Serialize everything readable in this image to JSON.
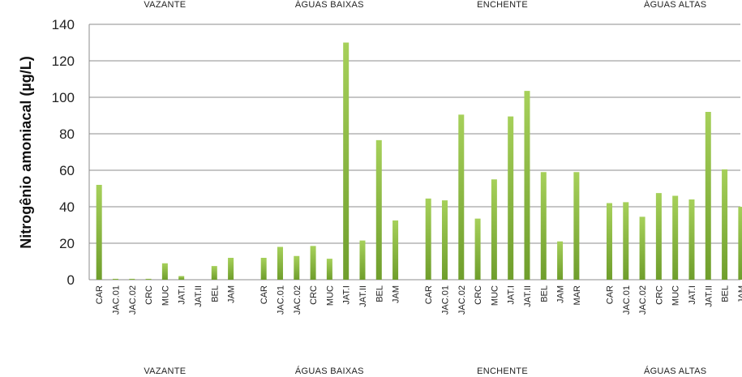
{
  "chart_data": {
    "type": "bar",
    "title": "",
    "ylabel": "Nitrogênio amoniacal (µg/L)",
    "xlabel": "",
    "ylim": [
      0,
      140
    ],
    "yticks": [
      0,
      20,
      40,
      60,
      80,
      100,
      120,
      140
    ],
    "grid": true,
    "legend": "none",
    "bar_color": "#8cbf3f",
    "groups": [
      {
        "name": "VAZANTE",
        "categories": [
          "CAR",
          "JAC.01",
          "JAC.02",
          "CRC",
          "MUC",
          "JAT.I",
          "JAT.II",
          "BEL",
          "JAM"
        ],
        "values": [
          52,
          0.5,
          0.5,
          0.5,
          9,
          2,
          0,
          7.5,
          12
        ]
      },
      {
        "name": "ÁGUAS BAIXAS",
        "categories": [
          "CAR",
          "JAC.01",
          "JAC.02",
          "CRC",
          "MUC",
          "JAT.I",
          "JAT.II",
          "BEL",
          "JAM"
        ],
        "values": [
          12,
          18,
          13,
          18.5,
          11.5,
          130,
          21.5,
          76.5,
          32.5
        ]
      },
      {
        "name": "ENCHENTE",
        "categories": [
          "CAR",
          "JAC.01",
          "JAC.02",
          "CRC",
          "MUC",
          "JAT.I",
          "JAT.II",
          "BEL",
          "JAM",
          "MAR"
        ],
        "values": [
          44.5,
          43.5,
          90.5,
          33.5,
          55,
          89.5,
          103.5,
          59,
          21,
          59
        ]
      },
      {
        "name": "ÁGUAS ALTAS",
        "categories": [
          "CAR",
          "JAC.01",
          "JAC.02",
          "CRC",
          "MUC",
          "JAT.I",
          "JAT.II",
          "BEL",
          "JAM"
        ],
        "values": [
          42,
          42.5,
          34.5,
          47.5,
          46,
          44,
          92,
          60.5,
          40
        ]
      }
    ]
  }
}
